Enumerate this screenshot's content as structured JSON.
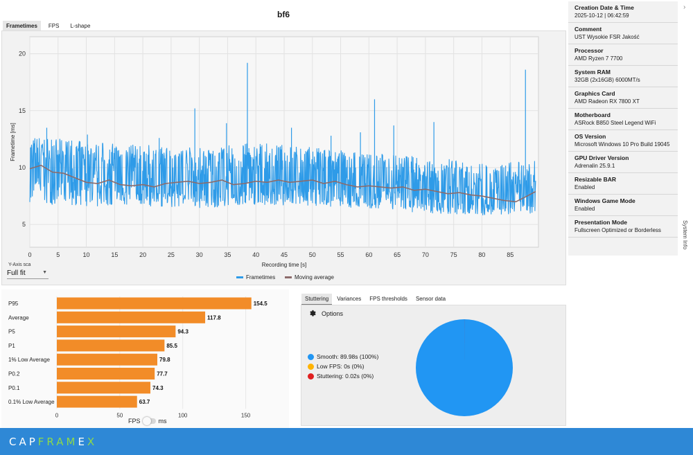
{
  "title": "bf6",
  "tabs": [
    "Frametimes",
    "FPS",
    "L-shape"
  ],
  "y_axis_scale_label": "Y-Axis sca",
  "y_axis_scale_value": "Full fit",
  "frametime_chart": {
    "type": "line",
    "ylabel": "Frametime [ms]",
    "xlabel": "Recording time [s]",
    "yticks": [
      "5",
      "10",
      "15",
      "20"
    ],
    "xticks": [
      "0",
      "5",
      "10",
      "15",
      "20",
      "25",
      "30",
      "35",
      "40",
      "45",
      "50",
      "55",
      "60",
      "65",
      "70",
      "75",
      "80",
      "85"
    ],
    "ylim": [
      3,
      21.5
    ],
    "xlim": [
      0,
      90
    ],
    "legend": [
      "Frametimes",
      "Moving average"
    ],
    "series_colors": {
      "frametimes": "#2e9be8",
      "moving_average": "#8c6b6b"
    },
    "moving_average": [
      [
        0,
        9.9
      ],
      [
        2,
        10.2
      ],
      [
        4,
        9.6
      ],
      [
        6,
        9.5
      ],
      [
        8,
        9.1
      ],
      [
        10,
        8.7
      ],
      [
        12,
        8.6
      ],
      [
        14,
        8.9
      ],
      [
        16,
        8.5
      ],
      [
        18,
        8.4
      ],
      [
        20,
        8.5
      ],
      [
        22,
        8.3
      ],
      [
        24,
        8.6
      ],
      [
        26,
        8.7
      ],
      [
        28,
        8.8
      ],
      [
        30,
        8.6
      ],
      [
        32,
        8.7
      ],
      [
        34,
        8.9
      ],
      [
        36,
        8.5
      ],
      [
        38,
        8.6
      ],
      [
        40,
        8.8
      ],
      [
        42,
        8.7
      ],
      [
        44,
        8.9
      ],
      [
        46,
        8.7
      ],
      [
        48,
        8.8
      ],
      [
        50,
        8.9
      ],
      [
        52,
        8.6
      ],
      [
        54,
        8.8
      ],
      [
        56,
        8.5
      ],
      [
        58,
        8.3
      ],
      [
        60,
        8.4
      ],
      [
        62,
        8.3
      ],
      [
        64,
        8.2
      ],
      [
        66,
        8.3
      ],
      [
        68,
        8.0
      ],
      [
        70,
        8.1
      ],
      [
        72,
        7.9
      ],
      [
        74,
        7.7
      ],
      [
        76,
        7.8
      ],
      [
        78,
        7.6
      ],
      [
        80,
        7.5
      ],
      [
        82,
        7.3
      ],
      [
        84,
        7.1
      ],
      [
        86,
        7.0
      ],
      [
        88,
        7.5
      ],
      [
        89.5,
        7.9
      ]
    ],
    "envelope_low": [
      [
        0,
        6.8
      ],
      [
        10,
        6.5
      ],
      [
        20,
        6.6
      ],
      [
        30,
        6.4
      ],
      [
        40,
        6.7
      ],
      [
        50,
        6.6
      ],
      [
        60,
        6.3
      ],
      [
        70,
        6.0
      ],
      [
        80,
        5.8
      ],
      [
        89.5,
        5.9
      ]
    ],
    "envelope_high": [
      [
        0,
        12.8
      ],
      [
        10,
        12.3
      ],
      [
        20,
        12.0
      ],
      [
        30,
        11.8
      ],
      [
        40,
        12.2
      ],
      [
        50,
        11.8
      ],
      [
        60,
        11.3
      ],
      [
        70,
        11.0
      ],
      [
        80,
        10.4
      ],
      [
        89.5,
        10.6
      ]
    ],
    "spikes": [
      [
        29.2,
        15.2
      ],
      [
        34.8,
        13.9
      ],
      [
        38.5,
        19.2
      ],
      [
        46.3,
        13.5
      ],
      [
        58.5,
        13.1
      ],
      [
        61.0,
        16.0
      ],
      [
        64.4,
        13.7
      ],
      [
        71.5,
        14.0
      ],
      [
        87.7,
        18.6
      ],
      [
        3.0,
        13.5
      ],
      [
        10.2,
        12.9
      ],
      [
        22.9,
        12.6
      ],
      [
        53.3,
        12.8
      ]
    ]
  },
  "fps_bars": {
    "type": "bar",
    "categories": [
      "P95",
      "Average",
      "P5",
      "P1",
      "1% Low Average",
      "P0.2",
      "P0.1",
      "0.1% Low Average"
    ],
    "values": [
      154.5,
      117.8,
      94.3,
      85.5,
      79.8,
      77.7,
      74.3,
      63.7
    ],
    "value_labels": [
      "154.5",
      "117.8",
      "94.3",
      "85.5",
      "79.8",
      "77.7",
      "74.3",
      "63.7"
    ],
    "xticks": [
      "0",
      "50",
      "100",
      "150"
    ],
    "xlim": [
      0,
      175
    ],
    "bar_color": "#f28c28"
  },
  "toggle": {
    "left": "FPS",
    "right": "ms"
  },
  "stat_tabs": [
    "Stuttering",
    "Variances",
    "FPS thresholds",
    "Sensor data"
  ],
  "options_label": "Options",
  "stuttering_legend": [
    {
      "label": "Smooth:  89.98s (100%)",
      "color": "#2196f3"
    },
    {
      "label": "Low FPS:  0s (0%)",
      "color": "#ffb300"
    },
    {
      "label": "Stuttering:  0.02s (0%)",
      "color": "#e02020"
    }
  ],
  "pie_chart": {
    "type": "pie",
    "labels": [
      "Smooth",
      "Low FPS",
      "Stuttering"
    ],
    "values": [
      89.98,
      0,
      0.02
    ],
    "colors": [
      "#2196f3",
      "#ffb300",
      "#e02020"
    ]
  },
  "system_info": [
    {
      "key": "Creation Date & Time",
      "value": "2025-10-12  |  06:42:59"
    },
    {
      "key": "Comment",
      "value": "UST Wysokie FSR Jakość"
    },
    {
      "key": "Processor",
      "value": "AMD Ryzen 7 7700"
    },
    {
      "key": "System RAM",
      "value": "32GB (2x16GB) 6000MT/s"
    },
    {
      "key": "Graphics Card",
      "value": "AMD  Radeon RX 7800 XT"
    },
    {
      "key": "Motherboard",
      "value": "ASRock B850 Steel Legend WiFi"
    },
    {
      "key": "OS Version",
      "value": "Microsoft Windows 10 Pro Build 19045"
    },
    {
      "key": "GPU Driver Version",
      "value": "Adrenalin 25.9.1"
    },
    {
      "key": "Resizable BAR",
      "value": "Enabled"
    },
    {
      "key": "Windows Game Mode",
      "value": "Enabled"
    },
    {
      "key": "Presentation Mode",
      "value": "Fullscreen Optimized or Borderless"
    }
  ],
  "system_info_label": "System Info",
  "logo": {
    "a": "CAP",
    "b": "FRAM",
    "c": "E",
    "d": "X"
  }
}
